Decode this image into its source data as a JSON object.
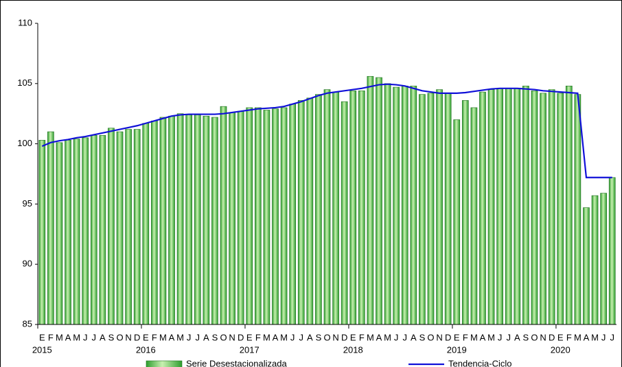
{
  "chart_data": {
    "type": "bar",
    "categories": [
      "E",
      "F",
      "M",
      "A",
      "M",
      "J",
      "J",
      "A",
      "S",
      "O",
      "N",
      "D",
      "E",
      "F",
      "M",
      "A",
      "M",
      "J",
      "J",
      "A",
      "S",
      "O",
      "N",
      "D",
      "E",
      "F",
      "M",
      "A",
      "M",
      "J",
      "J",
      "A",
      "S",
      "O",
      "N",
      "D",
      "E",
      "F",
      "M",
      "A",
      "M",
      "J",
      "J",
      "A",
      "S",
      "O",
      "N",
      "D",
      "E",
      "F",
      "M",
      "A",
      "M",
      "J",
      "J",
      "A",
      "S",
      "O",
      "N",
      "D",
      "E",
      "F",
      "M",
      "A",
      "M",
      "J",
      "J"
    ],
    "year_labels": [
      "2015",
      "2016",
      "2017",
      "2018",
      "2019",
      "2020"
    ],
    "ylim": [
      85,
      110
    ],
    "yticks": [
      85,
      90,
      95,
      100,
      105,
      110
    ],
    "series": [
      {
        "name": "Serie Desestacionalizada",
        "type": "bar",
        "color": "#2e9e2e",
        "values": [
          100.3,
          101.0,
          100.1,
          100.3,
          100.4,
          100.5,
          100.7,
          100.7,
          101.3,
          101.0,
          101.2,
          101.2,
          101.7,
          101.9,
          102.2,
          102.3,
          102.5,
          102.4,
          102.4,
          102.3,
          102.2,
          103.1,
          102.6,
          102.7,
          103.0,
          103.0,
          102.8,
          102.9,
          103.0,
          103.3,
          103.6,
          103.8,
          104.1,
          104.5,
          104.3,
          103.5,
          104.4,
          104.4,
          105.6,
          105.5,
          105.0,
          104.7,
          104.8,
          104.8,
          104.1,
          104.2,
          104.5,
          104.2,
          102.0,
          103.6,
          103.0,
          104.3,
          104.5,
          104.6,
          104.6,
          104.6,
          104.8,
          104.4,
          104.2,
          104.5,
          104.2,
          104.8,
          104.1,
          94.7,
          95.7,
          95.9,
          97.2
        ]
      },
      {
        "name": "Tendencia-Ciclo",
        "type": "line",
        "color": "#1010d8",
        "values": [
          99.8,
          100.1,
          100.25,
          100.35,
          100.5,
          100.6,
          100.75,
          100.9,
          101.05,
          101.2,
          101.35,
          101.5,
          101.7,
          101.9,
          102.1,
          102.3,
          102.4,
          102.45,
          102.45,
          102.45,
          102.45,
          102.5,
          102.6,
          102.7,
          102.8,
          102.9,
          102.95,
          103.0,
          103.1,
          103.3,
          103.5,
          103.75,
          104.0,
          104.2,
          104.3,
          104.4,
          104.5,
          104.6,
          104.75,
          104.9,
          104.95,
          104.9,
          104.8,
          104.6,
          104.4,
          104.3,
          104.2,
          104.2,
          104.2,
          104.25,
          104.35,
          104.45,
          104.55,
          104.6,
          104.6,
          104.6,
          104.55,
          104.5,
          104.4,
          104.35,
          104.3,
          104.25,
          104.2,
          97.2,
          97.2,
          97.2,
          97.2
        ]
      }
    ]
  }
}
